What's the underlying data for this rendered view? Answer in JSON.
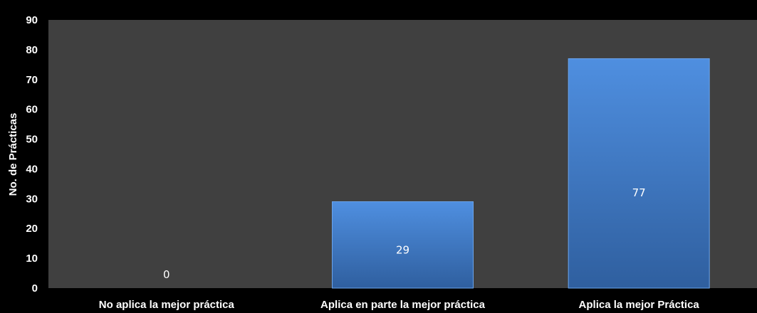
{
  "chart_data": {
    "type": "bar",
    "title": "",
    "xlabel": "",
    "ylabel": "No. de Prácticas",
    "categories": [
      "No aplica la mejor práctica",
      "Aplica en parte la mejor práctica",
      "Aplica la mejor Práctica"
    ],
    "values": [
      0,
      29,
      77
    ],
    "data_labels": [
      "0",
      "29",
      "77"
    ],
    "ylim": [
      0,
      90
    ],
    "yticks": [
      0,
      10,
      20,
      30,
      40,
      50,
      60,
      70,
      80,
      90
    ],
    "grid": false,
    "legend": "none",
    "colors": {
      "background": "#000000",
      "plot_area": "#404040",
      "bar_top": "#4f8fe0",
      "bar_bottom": "#2f5f9f",
      "text": "#ffffff"
    }
  }
}
